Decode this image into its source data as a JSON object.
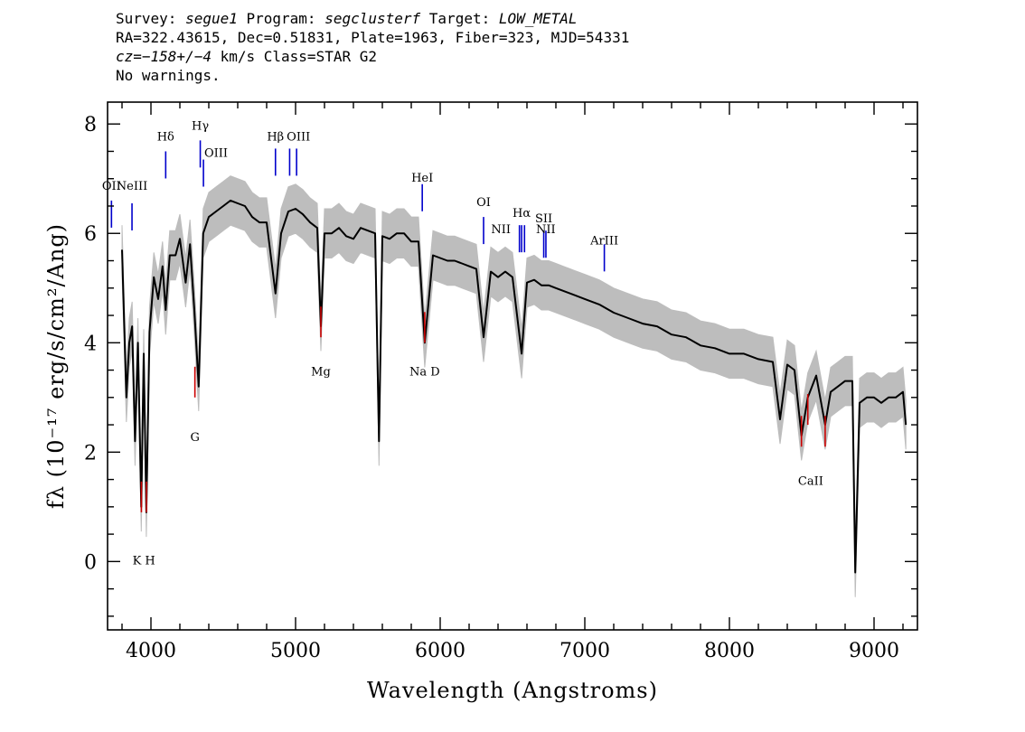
{
  "header": {
    "line1": {
      "survey_label": "Survey: ",
      "survey": "segue1",
      "program_label": " Program: ",
      "program": "segclusterf",
      "target_label": " Target: ",
      "target": "LOW_METAL"
    },
    "line2": "RA=322.43615, Dec=0.51831, Plate=1963, Fiber=323, MJD=54331",
    "line3": {
      "cz": "cz=−158+/−4",
      "rest": " km/s Class=STAR G2"
    },
    "line4": "No warnings."
  },
  "chart_data": {
    "type": "line",
    "xlabel": "Wavelength (Angstroms)",
    "ylabel": "fλ (10⁻¹⁷ erg/s/cm²/Ang)",
    "xlim": [
      3700,
      9300
    ],
    "ylim": [
      -1.25,
      8.4
    ],
    "xticks": [
      4000,
      5000,
      6000,
      7000,
      8000,
      9000
    ],
    "yticks": [
      0,
      2,
      4,
      6,
      8
    ],
    "grid": false,
    "colors": {
      "spectrum": "#000000",
      "error": "#bdbdbd",
      "emission": "#0000cc",
      "absorption": "#cc0000"
    },
    "series": [
      {
        "x": [
          3800,
          3830,
          3850,
          3870,
          3890,
          3910,
          3933,
          3950,
          3968,
          3990,
          4020,
          4050,
          4080,
          4102,
          4130,
          4170,
          4200,
          4240,
          4270,
          4300,
          4330,
          4361,
          4400,
          4450,
          4500,
          4550,
          4600,
          4650,
          4700,
          4750,
          4800,
          4861,
          4900,
          4950,
          5000,
          5050,
          5100,
          5150,
          5175,
          5200,
          5250,
          5300,
          5350,
          5400,
          5450,
          5500,
          5550,
          5577,
          5600,
          5650,
          5700,
          5750,
          5800,
          5850,
          5893,
          5950,
          6000,
          6050,
          6100,
          6150,
          6200,
          6250,
          6300,
          6350,
          6400,
          6450,
          6500,
          6563,
          6600,
          6650,
          6700,
          6750,
          6800,
          6850,
          6900,
          7000,
          7100,
          7200,
          7300,
          7400,
          7500,
          7600,
          7700,
          7800,
          7900,
          8000,
          8100,
          8200,
          8300,
          8350,
          8400,
          8450,
          8498,
          8542,
          8600,
          8662,
          8700,
          8750,
          8800,
          8850,
          8870,
          8900,
          8950,
          9000,
          9050,
          9100,
          9150,
          9200,
          9220
        ],
        "values": [
          5.7,
          3.0,
          4.0,
          4.3,
          2.2,
          4.0,
          1.0,
          3.8,
          0.9,
          4.2,
          5.2,
          4.8,
          5.4,
          4.6,
          5.6,
          5.6,
          5.9,
          5.1,
          5.8,
          4.6,
          3.2,
          6.0,
          6.3,
          6.4,
          6.5,
          6.6,
          6.55,
          6.5,
          6.3,
          6.2,
          6.2,
          4.9,
          6.0,
          6.4,
          6.45,
          6.35,
          6.2,
          6.1,
          4.3,
          6.0,
          6.0,
          6.1,
          5.95,
          5.9,
          6.1,
          6.05,
          6.0,
          2.2,
          5.95,
          5.9,
          6.0,
          6.0,
          5.85,
          5.85,
          4.0,
          5.6,
          5.55,
          5.5,
          5.5,
          5.45,
          5.4,
          5.35,
          4.1,
          5.3,
          5.2,
          5.3,
          5.2,
          3.8,
          5.1,
          5.15,
          5.05,
          5.05,
          5.0,
          4.95,
          4.9,
          4.8,
          4.7,
          4.55,
          4.45,
          4.35,
          4.3,
          4.15,
          4.1,
          3.95,
          3.9,
          3.8,
          3.8,
          3.7,
          3.65,
          2.6,
          3.6,
          3.5,
          2.3,
          3.0,
          3.4,
          2.5,
          3.1,
          3.2,
          3.3,
          3.3,
          -0.2,
          2.9,
          3.0,
          3.0,
          2.9,
          3.0,
          3.0,
          3.1,
          2.5
        ]
      }
    ],
    "lines": [
      {
        "name": "OII",
        "x": 3727,
        "y": 6.6,
        "kind": "emission"
      },
      {
        "name": "NeIII",
        "x": 3869,
        "y": 6.55,
        "kind": "emission"
      },
      {
        "name": "Hδ",
        "x": 4102,
        "y": 7.5,
        "kind": "emission"
      },
      {
        "name": "Hγ",
        "x": 4341,
        "y": 7.7,
        "kind": "emission"
      },
      {
        "name": "OIII",
        "x": 4363,
        "y": 7.35,
        "kind": "emission"
      },
      {
        "name": "Hβ",
        "x": 4861,
        "y": 7.55,
        "kind": "emission"
      },
      {
        "name": "OIII",
        "x": 4959,
        "y": 7.55,
        "kind": "emission"
      },
      {
        "name": "OIII",
        "x": 5007,
        "y": 7.55,
        "kind": "emission"
      },
      {
        "name": "HeI",
        "x": 5876,
        "y": 6.9,
        "kind": "emission"
      },
      {
        "name": "OI",
        "x": 6300,
        "y": 6.3,
        "kind": "emission"
      },
      {
        "name": "NII",
        "x": 6548,
        "y": 6.15,
        "kind": "emission"
      },
      {
        "name": "Hα",
        "x": 6563,
        "y": 6.15,
        "kind": "emission"
      },
      {
        "name": "NII",
        "x": 6583,
        "y": 6.15,
        "kind": "emission"
      },
      {
        "name": "SII",
        "x": 6716,
        "y": 6.05,
        "kind": "emission"
      },
      {
        "name": "SII",
        "x": 6731,
        "y": 6.05,
        "kind": "emission"
      },
      {
        "name": "ArIII",
        "x": 7135,
        "y": 5.8,
        "kind": "emission"
      },
      {
        "name": "K",
        "x": 3934,
        "y": 0.9,
        "kind": "absorption"
      },
      {
        "name": "H",
        "x": 3969,
        "y": 0.9,
        "kind": "absorption"
      },
      {
        "name": "G",
        "x": 4304,
        "y": 3.0,
        "kind": "absorption"
      },
      {
        "name": "Mg",
        "x": 5175,
        "y": 4.1,
        "kind": "absorption"
      },
      {
        "name": "Na D",
        "x": 5893,
        "y": 4.0,
        "kind": "absorption"
      },
      {
        "name": "CaII",
        "x": 8498,
        "y": 2.1,
        "kind": "absorption"
      },
      {
        "name": "CaII",
        "x": 8542,
        "y": 2.5,
        "kind": "absorption"
      },
      {
        "name": "CaII",
        "x": 8662,
        "y": 2.1,
        "kind": "absorption"
      }
    ],
    "line_labels": [
      {
        "text": "OII",
        "x": 3727,
        "y": 6.8,
        "anchor": "middle"
      },
      {
        "text": "NeIII",
        "x": 3869,
        "y": 6.8,
        "anchor": "middle"
      },
      {
        "text": "Hδ",
        "x": 4102,
        "y": 7.7,
        "anchor": "middle"
      },
      {
        "text": "Hγ",
        "x": 4341,
        "y": 7.9,
        "anchor": "middle"
      },
      {
        "text": "OIII",
        "x": 4450,
        "y": 7.4,
        "anchor": "middle"
      },
      {
        "text": "Hβ",
        "x": 4861,
        "y": 7.7,
        "anchor": "middle"
      },
      {
        "text": "OIII",
        "x": 5020,
        "y": 7.7,
        "anchor": "middle"
      },
      {
        "text": "HeI",
        "x": 5876,
        "y": 6.95,
        "anchor": "middle"
      },
      {
        "text": "OI",
        "x": 6300,
        "y": 6.5,
        "anchor": "middle"
      },
      {
        "text": "NII",
        "x": 6420,
        "y": 6.0,
        "anchor": "middle"
      },
      {
        "text": "Hα",
        "x": 6563,
        "y": 6.3,
        "anchor": "middle"
      },
      {
        "text": "NII",
        "x": 6730,
        "y": 6.0,
        "anchor": "middle"
      },
      {
        "text": "SII",
        "x": 6716,
        "y": 6.2,
        "anchor": "middle"
      },
      {
        "text": "ArIII",
        "x": 7135,
        "y": 5.8,
        "anchor": "middle"
      },
      {
        "text": "K H",
        "x": 3951,
        "y": -0.05,
        "anchor": "middle"
      },
      {
        "text": "G",
        "x": 4304,
        "y": 2.2,
        "anchor": "middle"
      },
      {
        "text": "Mg",
        "x": 5175,
        "y": 3.4,
        "anchor": "middle"
      },
      {
        "text": "Na  D",
        "x": 5893,
        "y": 3.4,
        "anchor": "middle"
      },
      {
        "text": "CaII",
        "x": 8562,
        "y": 1.4,
        "anchor": "middle"
      }
    ]
  }
}
